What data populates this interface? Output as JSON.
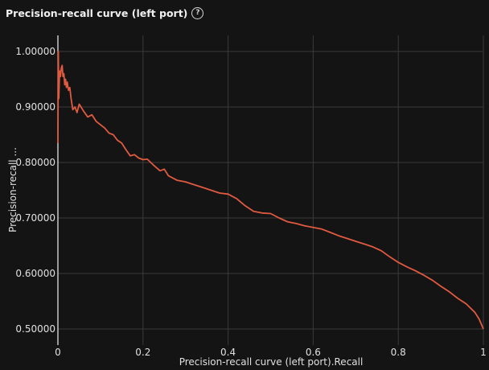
{
  "panel": {
    "title": "Precision-recall curve (left port)",
    "help_icon": "question-circle-icon"
  },
  "colors": {
    "background": "#141414",
    "series": "#e05a40",
    "grid": "#3a3a3a"
  },
  "chart_data": {
    "type": "line",
    "xlabel": "Precision-recall curve (left port).Recall",
    "ylabel": "Precision-recall ...",
    "xlim": [
      0,
      1
    ],
    "ylim": [
      0.5,
      1.0
    ],
    "x_ticks": [
      0,
      0.2,
      0.4,
      0.6,
      0.8,
      1
    ],
    "x_tick_labels": [
      "0",
      "0.2",
      "0.4",
      "0.6",
      "0.8",
      "1"
    ],
    "y_ticks": [
      0.5,
      0.6,
      0.7,
      0.8,
      0.9,
      1.0
    ],
    "y_tick_labels": [
      "0.50000",
      "0.60000",
      "0.70000",
      "0.80000",
      "0.90000",
      "1.00000"
    ],
    "grid": true,
    "series": [
      {
        "x": [
          0.0,
          0.001,
          0.002,
          0.004,
          0.006,
          0.008,
          0.01,
          0.012,
          0.014,
          0.016,
          0.018,
          0.02,
          0.022,
          0.025,
          0.028,
          0.031,
          0.035,
          0.04,
          0.045,
          0.05,
          0.06,
          0.07,
          0.08,
          0.09,
          0.1,
          0.11,
          0.12,
          0.13,
          0.14,
          0.15,
          0.16,
          0.17,
          0.18,
          0.19,
          0.2,
          0.21,
          0.225,
          0.24,
          0.25,
          0.26,
          0.27,
          0.28,
          0.3,
          0.32,
          0.34,
          0.36,
          0.38,
          0.4,
          0.42,
          0.44,
          0.46,
          0.48,
          0.5,
          0.52,
          0.54,
          0.56,
          0.58,
          0.6,
          0.62,
          0.64,
          0.66,
          0.68,
          0.7,
          0.72,
          0.74,
          0.76,
          0.78,
          0.8,
          0.82,
          0.84,
          0.86,
          0.88,
          0.9,
          0.92,
          0.94,
          0.96,
          0.98,
          0.99,
          1.0
        ],
        "y": [
          0.835,
          1.0,
          0.915,
          0.965,
          0.955,
          0.97,
          0.975,
          0.955,
          0.96,
          0.94,
          0.95,
          0.935,
          0.945,
          0.93,
          0.935,
          0.915,
          0.895,
          0.9,
          0.89,
          0.905,
          0.893,
          0.882,
          0.886,
          0.874,
          0.868,
          0.862,
          0.853,
          0.85,
          0.84,
          0.835,
          0.823,
          0.812,
          0.814,
          0.808,
          0.805,
          0.806,
          0.795,
          0.785,
          0.788,
          0.776,
          0.772,
          0.768,
          0.765,
          0.76,
          0.755,
          0.75,
          0.745,
          0.743,
          0.735,
          0.722,
          0.712,
          0.709,
          0.708,
          0.7,
          0.693,
          0.69,
          0.686,
          0.683,
          0.68,
          0.674,
          0.668,
          0.663,
          0.658,
          0.653,
          0.648,
          0.641,
          0.63,
          0.62,
          0.612,
          0.605,
          0.597,
          0.588,
          0.577,
          0.567,
          0.555,
          0.545,
          0.53,
          0.518,
          0.5
        ]
      }
    ]
  }
}
